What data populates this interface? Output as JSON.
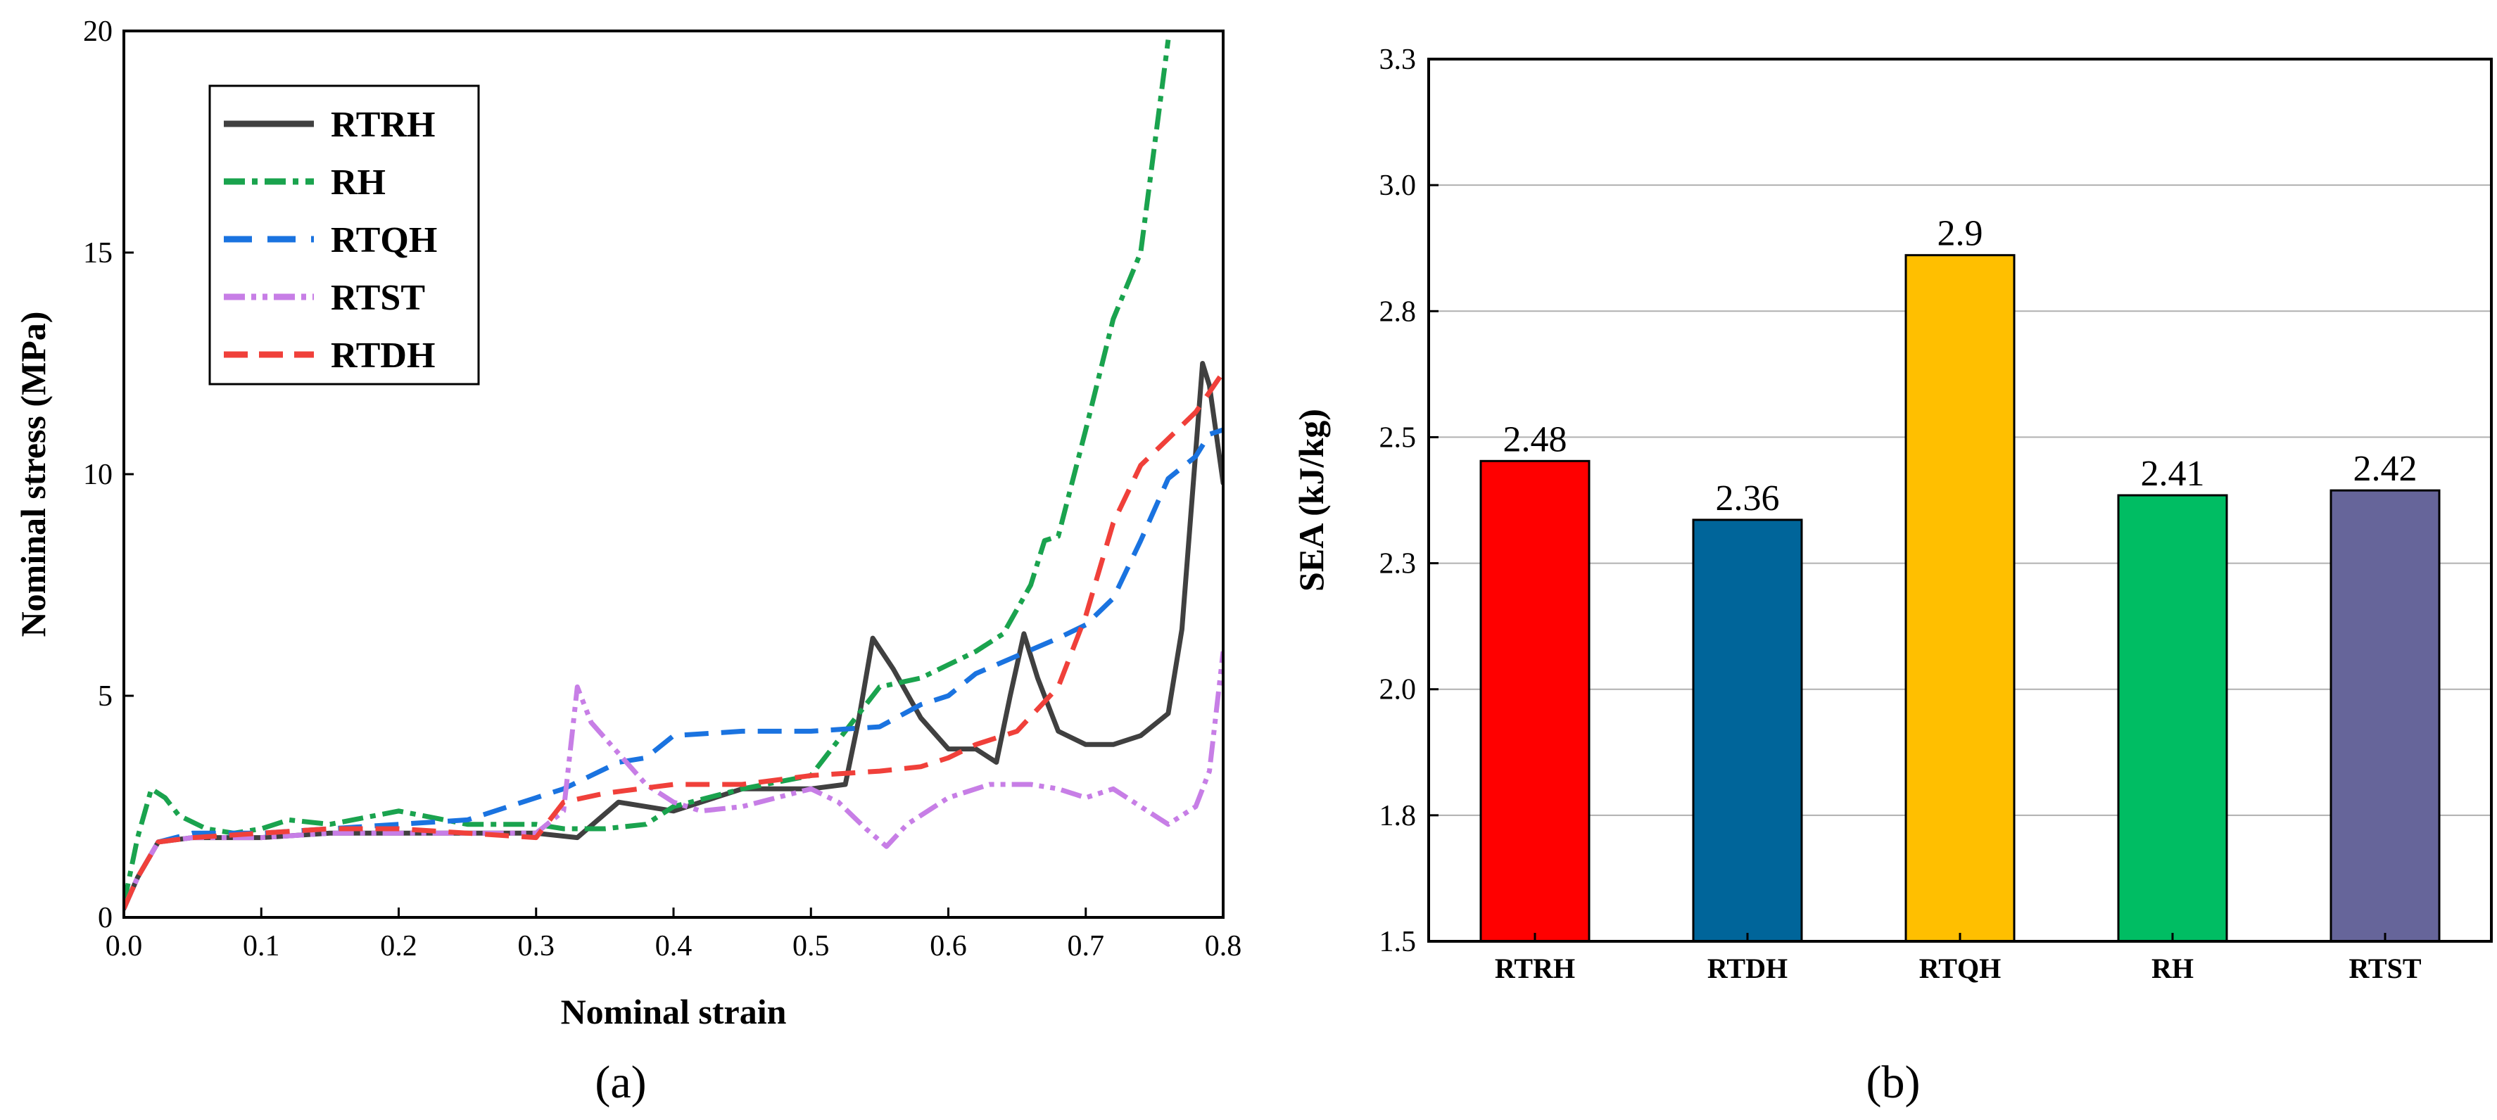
{
  "chart_data": [
    {
      "type": "line",
      "xlabel": "Nominal strain",
      "ylabel": "Nominal stress (MPa)",
      "xlim": [
        0.0,
        0.8
      ],
      "ylim": [
        0,
        20
      ],
      "xticks": [
        "0.0",
        "0.1",
        "0.2",
        "0.3",
        "0.4",
        "0.5",
        "0.6",
        "0.7",
        "0.8"
      ],
      "yticks": [
        "0",
        "5",
        "10",
        "15",
        "20"
      ],
      "legend_position": "top-left",
      "panel_label": "(a)",
      "series": [
        {
          "name": "RTRH",
          "color": "#404040",
          "style": "solid",
          "x": [
            0,
            0.01,
            0.025,
            0.05,
            0.1,
            0.15,
            0.2,
            0.25,
            0.3,
            0.33,
            0.36,
            0.4,
            0.45,
            0.5,
            0.525,
            0.535,
            0.545,
            0.56,
            0.58,
            0.6,
            0.62,
            0.635,
            0.645,
            0.655,
            0.665,
            0.68,
            0.7,
            0.72,
            0.74,
            0.76,
            0.77,
            0.78,
            0.785,
            0.79,
            0.8
          ],
          "y": [
            0.2,
            0.9,
            1.7,
            1.8,
            1.8,
            1.9,
            1.9,
            1.9,
            1.9,
            1.8,
            2.6,
            2.4,
            2.9,
            2.9,
            3.0,
            4.5,
            6.3,
            5.6,
            4.5,
            3.8,
            3.8,
            3.5,
            5.0,
            6.4,
            5.4,
            4.2,
            3.9,
            3.9,
            4.1,
            4.6,
            6.5,
            10.5,
            12.5,
            12.0,
            9.8
          ]
        },
        {
          "name": "RH",
          "color": "#1aa34e",
          "style": "dashdot",
          "x": [
            0,
            0.01,
            0.02,
            0.03,
            0.04,
            0.06,
            0.08,
            0.1,
            0.12,
            0.15,
            0.2,
            0.25,
            0.3,
            0.32,
            0.35,
            0.38,
            0.4,
            0.45,
            0.5,
            0.52,
            0.55,
            0.58,
            0.6,
            0.62,
            0.64,
            0.66,
            0.67,
            0.68,
            0.7,
            0.72,
            0.74,
            0.76
          ],
          "y": [
            0.3,
            1.8,
            2.9,
            2.7,
            2.3,
            2.0,
            1.9,
            2.0,
            2.2,
            2.1,
            2.4,
            2.1,
            2.1,
            2.0,
            2.0,
            2.1,
            2.5,
            2.9,
            3.2,
            4.0,
            5.2,
            5.4,
            5.7,
            6.0,
            6.4,
            7.5,
            8.5,
            8.6,
            11.0,
            13.5,
            15.0,
            19.8
          ]
        },
        {
          "name": "RTQH",
          "color": "#1a73e0",
          "style": "dashed",
          "x": [
            0,
            0.01,
            0.025,
            0.05,
            0.1,
            0.15,
            0.2,
            0.25,
            0.28,
            0.3,
            0.32,
            0.34,
            0.36,
            0.38,
            0.4,
            0.45,
            0.5,
            0.55,
            0.58,
            0.6,
            0.62,
            0.65,
            0.68,
            0.7,
            0.72,
            0.74,
            0.76,
            0.78,
            0.79,
            0.8
          ],
          "y": [
            0.2,
            0.9,
            1.7,
            1.9,
            1.9,
            2.0,
            2.1,
            2.2,
            2.5,
            2.7,
            2.9,
            3.2,
            3.5,
            3.6,
            4.1,
            4.2,
            4.2,
            4.3,
            4.8,
            5.0,
            5.5,
            5.9,
            6.3,
            6.6,
            7.2,
            8.5,
            9.9,
            10.4,
            10.9,
            11.0
          ]
        },
        {
          "name": "RTST",
          "color": "#c77ee6",
          "style": "dashdotdot",
          "x": [
            0,
            0.01,
            0.025,
            0.05,
            0.1,
            0.15,
            0.2,
            0.25,
            0.3,
            0.32,
            0.33,
            0.34,
            0.36,
            0.38,
            0.4,
            0.42,
            0.45,
            0.5,
            0.52,
            0.54,
            0.555,
            0.57,
            0.6,
            0.63,
            0.66,
            0.68,
            0.7,
            0.72,
            0.74,
            0.76,
            0.78,
            0.79,
            0.8
          ],
          "y": [
            0.2,
            0.9,
            1.7,
            1.8,
            1.8,
            1.9,
            1.9,
            1.9,
            1.9,
            2.4,
            5.2,
            4.4,
            3.7,
            3.0,
            2.6,
            2.4,
            2.5,
            2.9,
            2.6,
            2.0,
            1.6,
            2.1,
            2.7,
            3.0,
            3.0,
            2.9,
            2.7,
            2.9,
            2.5,
            2.1,
            2.5,
            3.3,
            6.0
          ]
        },
        {
          "name": "RTDH",
          "color": "#f0403a",
          "style": "dashed",
          "x": [
            0,
            0.01,
            0.025,
            0.05,
            0.1,
            0.15,
            0.2,
            0.25,
            0.3,
            0.32,
            0.35,
            0.4,
            0.45,
            0.5,
            0.55,
            0.58,
            0.6,
            0.62,
            0.65,
            0.68,
            0.7,
            0.72,
            0.74,
            0.76,
            0.78,
            0.8
          ],
          "y": [
            0.2,
            0.9,
            1.7,
            1.8,
            1.9,
            2.0,
            2.0,
            1.9,
            1.8,
            2.6,
            2.8,
            3.0,
            3.0,
            3.2,
            3.3,
            3.4,
            3.6,
            3.9,
            4.2,
            5.2,
            6.8,
            8.9,
            10.2,
            10.8,
            11.4,
            12.3
          ]
        }
      ]
    },
    {
      "type": "bar",
      "ylabel": "SEA (kJ/kg)",
      "xlabel": "",
      "ylim": [
        1.5,
        3.3
      ],
      "yticks": [
        "1.5",
        "1.8",
        "2.0",
        "2.3",
        "2.5",
        "2.8",
        "3.0",
        "3.3"
      ],
      "grid": true,
      "panel_label": "(b)",
      "categories": [
        "RTRH",
        "RTDH",
        "RTQH",
        "RH",
        "RTST"
      ],
      "values": [
        2.48,
        2.36,
        2.9,
        2.41,
        2.42
      ],
      "labels": [
        "2.48",
        "2.36",
        "2.9",
        "2.41",
        "2.42"
      ],
      "colors": [
        "#ff0000",
        "#00659a",
        "#ffbf00",
        "#00bd63",
        "#66659a"
      ]
    }
  ]
}
